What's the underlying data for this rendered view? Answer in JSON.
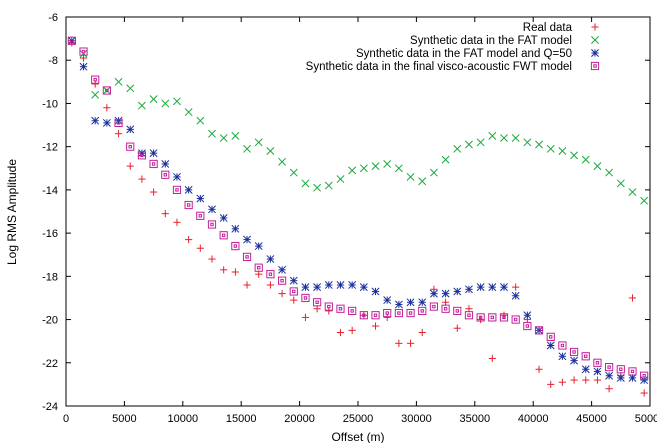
{
  "chart_data": {
    "type": "scatter",
    "xlabel": "Offset (m)",
    "ylabel": "Log RMS Amplitude",
    "xlim": [
      0,
      50000
    ],
    "ylim": [
      -24,
      -6
    ],
    "xticks": [
      0,
      5000,
      10000,
      15000,
      20000,
      25000,
      30000,
      35000,
      40000,
      45000,
      50000
    ],
    "yticks": [
      -24,
      -22,
      -20,
      -18,
      -16,
      -14,
      -12,
      -10,
      -8,
      -6
    ],
    "grid": false,
    "legend_position": "top-right",
    "series": [
      {
        "name": "Real data",
        "marker": "plus",
        "color": "#e8202a",
        "x": [
          500,
          1500,
          2500,
          3500,
          4500,
          5500,
          6500,
          7500,
          8500,
          9500,
          10500,
          11500,
          12500,
          13500,
          14500,
          15500,
          16500,
          17500,
          18500,
          19500,
          20500,
          21500,
          22500,
          23500,
          24500,
          25500,
          26500,
          27500,
          28500,
          29500,
          30500,
          31500,
          32500,
          33500,
          34500,
          35500,
          36500,
          37500,
          38500,
          39500,
          40500,
          41500,
          42500,
          43500,
          44500,
          45500,
          46500,
          47500,
          48500,
          49500
        ],
        "y": [
          -7.2,
          -7.9,
          -9.1,
          -10.2,
          -11.4,
          -12.9,
          -13.5,
          -14.1,
          -15.1,
          -15.5,
          -16.3,
          -16.7,
          -17.2,
          -17.7,
          -17.8,
          -18.4,
          -17.9,
          -18.4,
          -18.8,
          -19.1,
          -19.9,
          -19.5,
          -19.6,
          -20.6,
          -20.5,
          -19.8,
          -20.3,
          -19.9,
          -21.1,
          -21.1,
          -20.6,
          -18.6,
          -19.2,
          -20.4,
          -19.5,
          -20.0,
          -21.8,
          -19.8,
          -18.5,
          -20.0,
          -22.3,
          -23.0,
          -22.9,
          -22.8,
          -22.8,
          -22.8,
          -23.2,
          -22.6,
          -19.0,
          -23.4
        ]
      },
      {
        "name": "Synthetic data in the FAT model",
        "marker": "cross",
        "color": "#1aa83b",
        "x": [
          500,
          1500,
          2500,
          3500,
          4500,
          5500,
          6500,
          7500,
          8500,
          9500,
          10500,
          11500,
          12500,
          13500,
          14500,
          15500,
          16500,
          17500,
          18500,
          19500,
          20500,
          21500,
          22500,
          23500,
          24500,
          25500,
          26500,
          27500,
          28500,
          29500,
          30500,
          31500,
          32500,
          33500,
          34500,
          35500,
          36500,
          37500,
          38500,
          39500,
          40500,
          41500,
          42500,
          43500,
          44500,
          45500,
          46500,
          47500,
          48500,
          49500
        ],
        "y": [
          -7.1,
          -7.7,
          -9.6,
          -9.4,
          -9.0,
          -9.3,
          -10.1,
          -9.8,
          -10.0,
          -9.9,
          -10.4,
          -10.8,
          -11.4,
          -11.6,
          -11.5,
          -12.1,
          -11.8,
          -12.2,
          -12.7,
          -13.2,
          -13.7,
          -13.9,
          -13.8,
          -13.5,
          -13.1,
          -13.0,
          -12.9,
          -12.8,
          -13.0,
          -13.4,
          -13.6,
          -13.2,
          -12.6,
          -12.1,
          -11.9,
          -11.8,
          -11.5,
          -11.6,
          -11.6,
          -11.8,
          -11.9,
          -12.1,
          -12.2,
          -12.4,
          -12.6,
          -12.9,
          -13.2,
          -13.7,
          -14.1,
          -14.5
        ]
      },
      {
        "name": "Synthetic data in the FAT model and Q=50",
        "marker": "star",
        "color": "#1a2f9a",
        "x": [
          500,
          1500,
          2500,
          3500,
          4500,
          5500,
          6500,
          7500,
          8500,
          9500,
          10500,
          11500,
          12500,
          13500,
          14500,
          15500,
          16500,
          17500,
          18500,
          19500,
          20500,
          21500,
          22500,
          23500,
          24500,
          25500,
          26500,
          27500,
          28500,
          29500,
          30500,
          31500,
          32500,
          33500,
          34500,
          35500,
          36500,
          37500,
          38500,
          39500,
          40500,
          41500,
          42500,
          43500,
          44500,
          45500,
          46500,
          47500,
          48500,
          49500
        ],
        "y": [
          -7.1,
          -8.3,
          -10.8,
          -10.9,
          -10.8,
          -11.2,
          -12.3,
          -12.3,
          -12.8,
          -13.4,
          -14.0,
          -14.4,
          -14.9,
          -15.3,
          -15.8,
          -16.3,
          -16.6,
          -17.2,
          -17.7,
          -18.2,
          -18.5,
          -18.5,
          -18.4,
          -18.4,
          -18.4,
          -18.5,
          -18.7,
          -19.1,
          -19.3,
          -19.2,
          -19.2,
          -18.8,
          -18.8,
          -18.7,
          -18.6,
          -18.5,
          -18.5,
          -18.5,
          -18.9,
          -19.8,
          -20.5,
          -21.2,
          -21.7,
          -21.9,
          -22.3,
          -22.4,
          -22.6,
          -22.7,
          -22.7,
          -22.8
        ]
      },
      {
        "name": "Synthetic data in the final visco-acoustic FWT model",
        "marker": "square",
        "color": "#c2209a",
        "x": [
          500,
          1500,
          2500,
          3500,
          4500,
          5500,
          6500,
          7500,
          8500,
          9500,
          10500,
          11500,
          12500,
          13500,
          14500,
          15500,
          16500,
          17500,
          18500,
          19500,
          20500,
          21500,
          22500,
          23500,
          24500,
          25500,
          26500,
          27500,
          28500,
          29500,
          30500,
          31500,
          32500,
          33500,
          34500,
          35500,
          36500,
          37500,
          38500,
          39500,
          40500,
          41500,
          42500,
          43500,
          44500,
          45500,
          46500,
          47500,
          48500,
          49500
        ],
        "y": [
          -7.1,
          -7.6,
          -8.9,
          -9.4,
          -10.9,
          -12.0,
          -12.4,
          -12.8,
          -13.3,
          -14.0,
          -14.7,
          -15.2,
          -15.6,
          -16.1,
          -16.6,
          -17.1,
          -17.6,
          -17.9,
          -18.2,
          -18.7,
          -19.0,
          -19.2,
          -19.4,
          -19.5,
          -19.6,
          -19.8,
          -19.8,
          -19.7,
          -19.7,
          -19.7,
          -19.6,
          -19.4,
          -19.5,
          -19.6,
          -19.8,
          -19.9,
          -19.9,
          -19.9,
          -20.0,
          -20.3,
          -20.5,
          -20.8,
          -21.2,
          -21.5,
          -21.7,
          -22.0,
          -22.2,
          -22.3,
          -22.4,
          -22.6
        ]
      }
    ]
  }
}
